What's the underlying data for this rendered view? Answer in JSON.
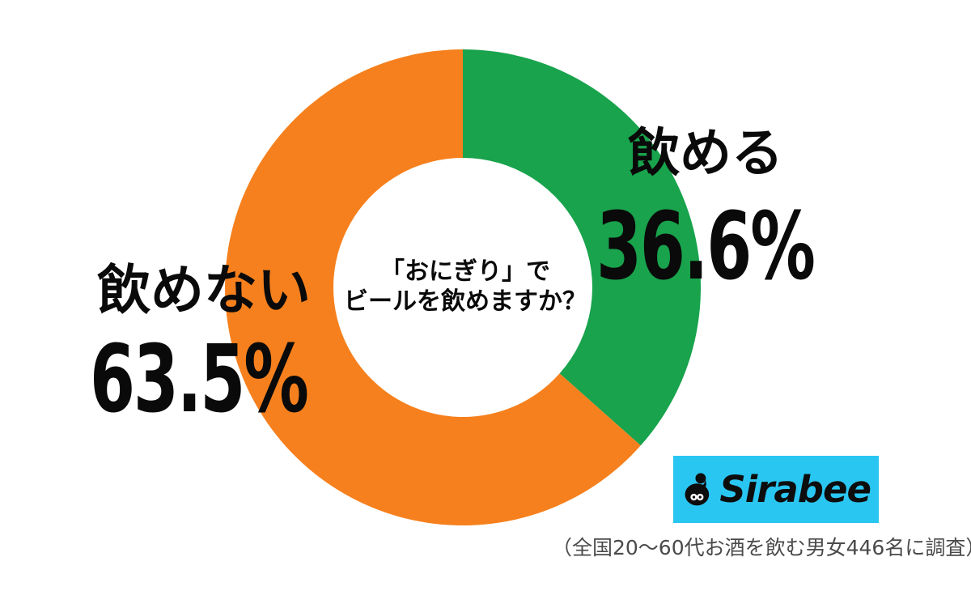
{
  "page": {
    "background": "#ffffff"
  },
  "chart_data": {
    "type": "pie",
    "subtype": "donut",
    "title": "「おにぎり」でビールを飲めますか？",
    "start_angle_deg": 0,
    "direction": "clockwise",
    "unit": "%",
    "series": [
      {
        "label": "飲める",
        "value": 36.6,
        "color": "#18a34c"
      },
      {
        "label": "飲めない",
        "value": 63.5,
        "color": "#f6801d"
      }
    ],
    "legend_position": "labels-beside-slices",
    "hole_fill": "#ffffff"
  },
  "center_label": {
    "line1": "「おにぎり」で",
    "line2": "ビールを飲めますか？"
  },
  "labels": {
    "can": {
      "name": "飲める",
      "value": "36.6%"
    },
    "cannot": {
      "name": "飲めない",
      "value": "63.5%"
    }
  },
  "logo": {
    "text": "Sirabee",
    "background": "#2ac6f2",
    "icon": "sirabee-bee-mascot-icon",
    "icon_color": "#0d0d0d"
  },
  "footnote": "（全国20〜60代お酒を飲む男女446名に調査）"
}
